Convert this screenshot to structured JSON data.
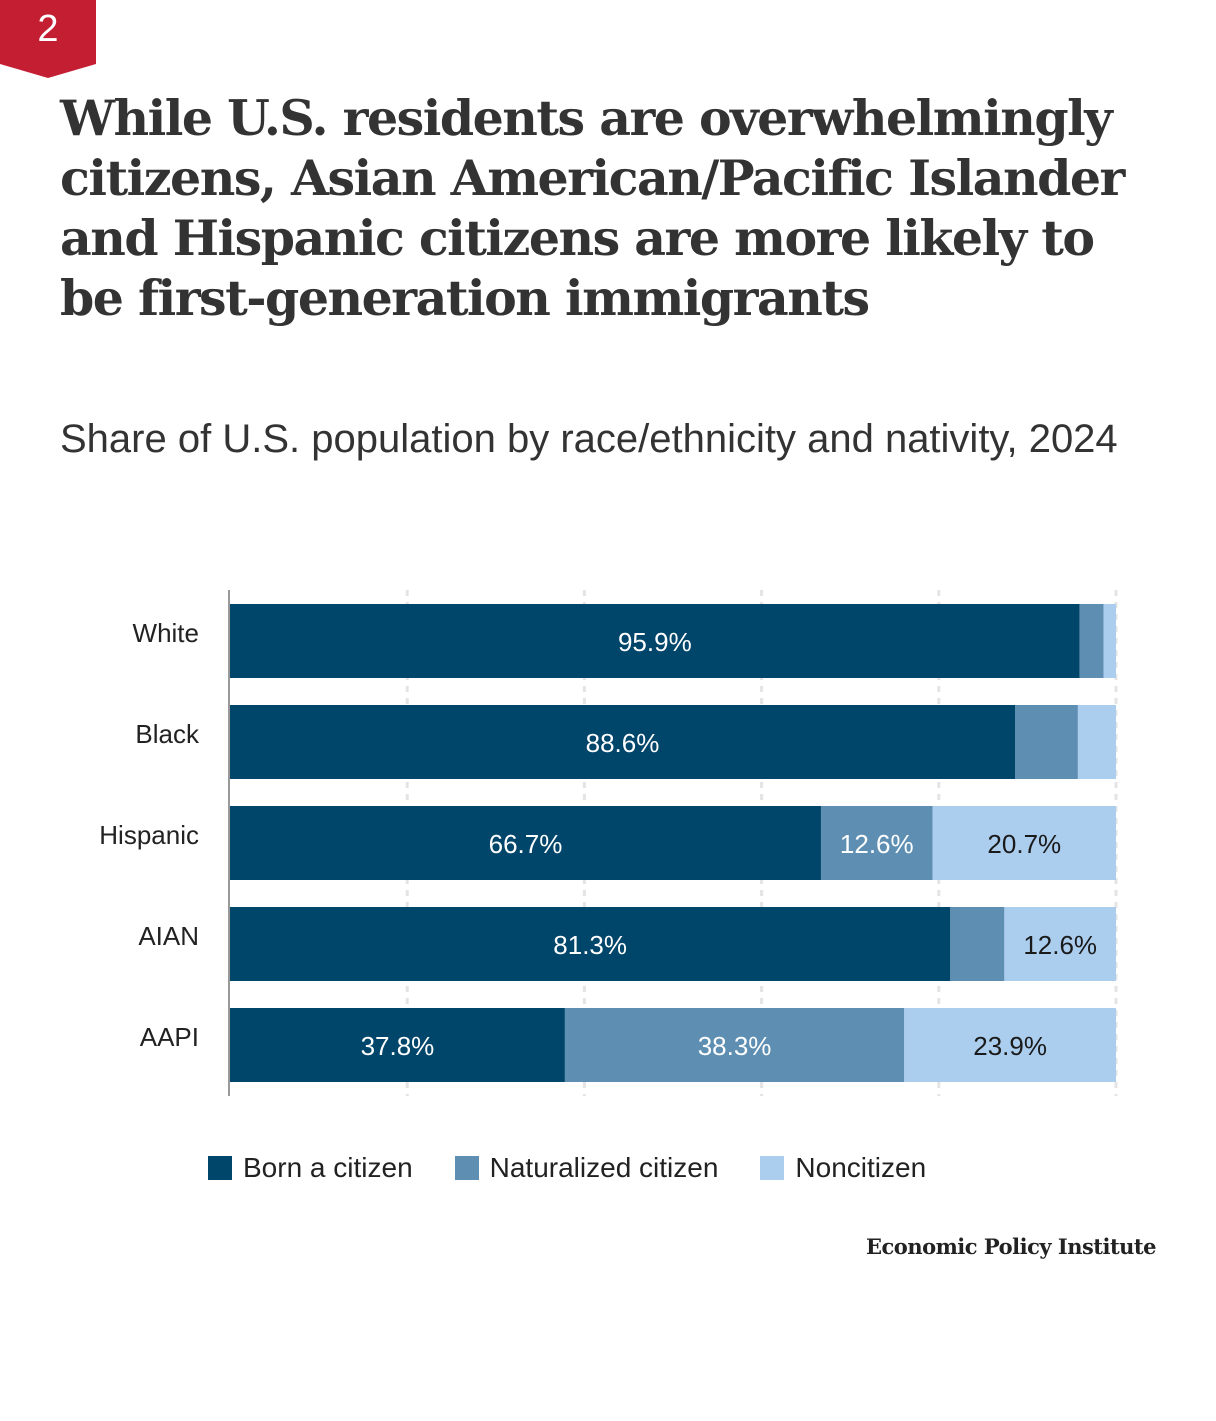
{
  "badge": {
    "number": "2",
    "color": "#c41e33"
  },
  "title": "While U.S. residents are overwhelmingly citizens, Asian American/Pacific Islander and Hispanic citizens are more likely to be first-generation immigrants",
  "subtitle": "Share of U.S. population by race/ethnicity and nativity, 2024",
  "source": "Economic Policy Institute",
  "chart_data": {
    "type": "bar",
    "orientation": "horizontal",
    "stacked": true,
    "title": "Share of U.S. population by race/ethnicity and nativity, 2024",
    "categories": [
      "White",
      "Black",
      "Hispanic",
      "AIAN",
      "AAPI"
    ],
    "series": [
      {
        "name": "Born a citizen",
        "color": "#00456a",
        "values": [
          95.9,
          88.6,
          66.7,
          81.3,
          37.8
        ],
        "labels": [
          "95.9%",
          "88.6%",
          "66.7%",
          "81.3%",
          "37.8%"
        ],
        "label_color": "#ffffff"
      },
      {
        "name": "Naturalized citizen",
        "color": "#5e8fb3",
        "values": [
          2.7,
          7.1,
          12.6,
          6.1,
          38.3
        ],
        "labels": [
          "",
          "",
          "12.6%",
          "",
          "38.3%"
        ],
        "label_color": "#ffffff"
      },
      {
        "name": "Noncitizen",
        "color": "#abcdee",
        "values": [
          1.4,
          4.3,
          20.7,
          12.6,
          23.9
        ],
        "labels": [
          "",
          "",
          "20.7%",
          "12.6%",
          "23.9%"
        ],
        "label_color": "#1a1a1a"
      }
    ],
    "xlim": [
      0,
      100
    ],
    "grid": true,
    "gridlines": [
      20,
      40,
      60,
      80,
      100
    ],
    "legend": "bottom",
    "xlabel": "",
    "ylabel": ""
  }
}
